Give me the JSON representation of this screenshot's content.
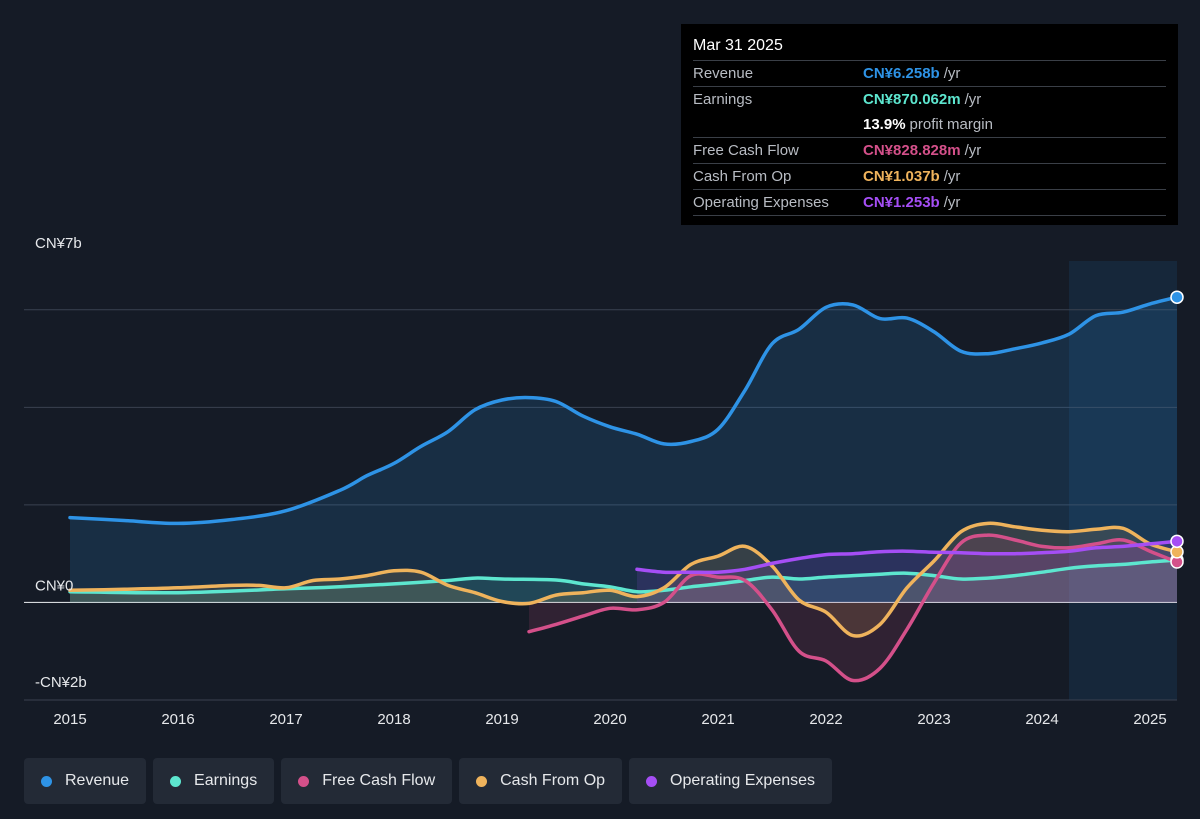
{
  "tooltip": {
    "date": "Mar 31 2025",
    "rows": [
      {
        "label": "Revenue",
        "value": "CN¥6.258b",
        "unit": "/yr",
        "color": "#2e93e6"
      },
      {
        "label": "Earnings",
        "value": "CN¥870.062m",
        "unit": "/yr",
        "color": "#5de6cf"
      },
      {
        "label": "",
        "value": "13.9%",
        "unit": "profit margin",
        "color": "#ffffff"
      },
      {
        "label": "Free Cash Flow",
        "value": "CN¥828.828m",
        "unit": "/yr",
        "color": "#d4508a"
      },
      {
        "label": "Cash From Op",
        "value": "CN¥1.037b",
        "unit": "/yr",
        "color": "#efb35c"
      },
      {
        "label": "Operating Expenses",
        "value": "CN¥1.253b",
        "unit": "/yr",
        "color": "#a54ef5"
      }
    ]
  },
  "legend": [
    {
      "label": "Revenue",
      "color": "#2e93e6"
    },
    {
      "label": "Earnings",
      "color": "#5de6cf"
    },
    {
      "label": "Free Cash Flow",
      "color": "#d4508a"
    },
    {
      "label": "Cash From Op",
      "color": "#efb35c"
    },
    {
      "label": "Operating Expenses",
      "color": "#a54ef5"
    }
  ],
  "chart_data": {
    "type": "area",
    "y_tick_labels": [
      "CN¥7b",
      "CN¥0",
      "-CN¥2b"
    ],
    "x_tick_labels": [
      "2015",
      "2016",
      "2017",
      "2018",
      "2019",
      "2020",
      "2021",
      "2022",
      "2023",
      "2024",
      "2025"
    ],
    "xlim": [
      2015.0,
      2025.25
    ],
    "ylim": [
      -2.0,
      7.0
    ],
    "y_unit": "CN¥ billions",
    "grid": true,
    "highlight_start": 2024.25,
    "series": [
      {
        "name": "Revenue",
        "color": "#2e93e6",
        "fill": true,
        "points": [
          [
            2015.0,
            1.74
          ],
          [
            2015.5,
            1.68
          ],
          [
            2016.0,
            1.62
          ],
          [
            2016.5,
            1.7
          ],
          [
            2017.0,
            1.88
          ],
          [
            2017.5,
            2.3
          ],
          [
            2017.75,
            2.6
          ],
          [
            2018.0,
            2.85
          ],
          [
            2018.25,
            3.2
          ],
          [
            2018.5,
            3.5
          ],
          [
            2018.75,
            3.95
          ],
          [
            2019.0,
            4.15
          ],
          [
            2019.25,
            4.2
          ],
          [
            2019.5,
            4.12
          ],
          [
            2019.75,
            3.82
          ],
          [
            2020.0,
            3.6
          ],
          [
            2020.25,
            3.45
          ],
          [
            2020.5,
            3.25
          ],
          [
            2020.75,
            3.3
          ],
          [
            2021.0,
            3.55
          ],
          [
            2021.25,
            4.35
          ],
          [
            2021.5,
            5.3
          ],
          [
            2021.75,
            5.6
          ],
          [
            2022.0,
            6.05
          ],
          [
            2022.25,
            6.1
          ],
          [
            2022.5,
            5.82
          ],
          [
            2022.75,
            5.83
          ],
          [
            2023.0,
            5.55
          ],
          [
            2023.25,
            5.15
          ],
          [
            2023.5,
            5.1
          ],
          [
            2023.75,
            5.2
          ],
          [
            2024.0,
            5.32
          ],
          [
            2024.25,
            5.5
          ],
          [
            2024.5,
            5.88
          ],
          [
            2024.75,
            5.95
          ],
          [
            2025.0,
            6.12
          ],
          [
            2025.25,
            6.258
          ]
        ]
      },
      {
        "name": "Earnings",
        "color": "#5de6cf",
        "fill": true,
        "points": [
          [
            2015.0,
            0.22
          ],
          [
            2016.0,
            0.2
          ],
          [
            2017.0,
            0.28
          ],
          [
            2017.5,
            0.32
          ],
          [
            2018.0,
            0.38
          ],
          [
            2018.5,
            0.45
          ],
          [
            2018.75,
            0.5
          ],
          [
            2019.0,
            0.48
          ],
          [
            2019.5,
            0.46
          ],
          [
            2019.75,
            0.38
          ],
          [
            2020.0,
            0.32
          ],
          [
            2020.25,
            0.22
          ],
          [
            2020.5,
            0.25
          ],
          [
            2020.75,
            0.32
          ],
          [
            2021.0,
            0.38
          ],
          [
            2021.25,
            0.45
          ],
          [
            2021.5,
            0.52
          ],
          [
            2021.75,
            0.48
          ],
          [
            2022.0,
            0.52
          ],
          [
            2022.25,
            0.55
          ],
          [
            2022.5,
            0.58
          ],
          [
            2022.75,
            0.6
          ],
          [
            2023.0,
            0.55
          ],
          [
            2023.25,
            0.48
          ],
          [
            2023.5,
            0.5
          ],
          [
            2023.75,
            0.55
          ],
          [
            2024.0,
            0.62
          ],
          [
            2024.25,
            0.7
          ],
          [
            2024.5,
            0.75
          ],
          [
            2024.75,
            0.78
          ],
          [
            2025.0,
            0.83
          ],
          [
            2025.25,
            0.87
          ]
        ]
      },
      {
        "name": "Free Cash Flow",
        "color": "#d4508a",
        "fill": true,
        "points": [
          [
            2019.25,
            -0.6
          ],
          [
            2019.5,
            -0.45
          ],
          [
            2019.75,
            -0.28
          ],
          [
            2020.0,
            -0.12
          ],
          [
            2020.25,
            -0.15
          ],
          [
            2020.5,
            0.0
          ],
          [
            2020.75,
            0.55
          ],
          [
            2021.0,
            0.52
          ],
          [
            2021.25,
            0.45
          ],
          [
            2021.5,
            -0.15
          ],
          [
            2021.75,
            -1.0
          ],
          [
            2022.0,
            -1.2
          ],
          [
            2022.25,
            -1.6
          ],
          [
            2022.5,
            -1.35
          ],
          [
            2022.75,
            -0.55
          ],
          [
            2023.0,
            0.4
          ],
          [
            2023.25,
            1.22
          ],
          [
            2023.5,
            1.38
          ],
          [
            2023.75,
            1.28
          ],
          [
            2024.0,
            1.15
          ],
          [
            2024.25,
            1.12
          ],
          [
            2024.5,
            1.2
          ],
          [
            2024.75,
            1.28
          ],
          [
            2025.0,
            1.05
          ],
          [
            2025.25,
            0.829
          ]
        ]
      },
      {
        "name": "Cash From Op",
        "color": "#efb35c",
        "fill": true,
        "points": [
          [
            2015.0,
            0.25
          ],
          [
            2015.5,
            0.27
          ],
          [
            2016.0,
            0.3
          ],
          [
            2016.5,
            0.35
          ],
          [
            2016.75,
            0.35
          ],
          [
            2017.0,
            0.3
          ],
          [
            2017.25,
            0.45
          ],
          [
            2017.5,
            0.48
          ],
          [
            2017.75,
            0.55
          ],
          [
            2018.0,
            0.65
          ],
          [
            2018.25,
            0.62
          ],
          [
            2018.5,
            0.35
          ],
          [
            2018.75,
            0.2
          ],
          [
            2019.0,
            0.02
          ],
          [
            2019.25,
            -0.02
          ],
          [
            2019.5,
            0.15
          ],
          [
            2019.75,
            0.2
          ],
          [
            2020.0,
            0.25
          ],
          [
            2020.25,
            0.12
          ],
          [
            2020.5,
            0.3
          ],
          [
            2020.75,
            0.78
          ],
          [
            2021.0,
            0.95
          ],
          [
            2021.25,
            1.15
          ],
          [
            2021.5,
            0.75
          ],
          [
            2021.75,
            0.05
          ],
          [
            2022.0,
            -0.2
          ],
          [
            2022.25,
            -0.68
          ],
          [
            2022.5,
            -0.45
          ],
          [
            2022.75,
            0.3
          ],
          [
            2023.0,
            0.85
          ],
          [
            2023.25,
            1.45
          ],
          [
            2023.5,
            1.62
          ],
          [
            2023.75,
            1.55
          ],
          [
            2024.0,
            1.48
          ],
          [
            2024.25,
            1.45
          ],
          [
            2024.5,
            1.5
          ],
          [
            2024.75,
            1.52
          ],
          [
            2025.0,
            1.2
          ],
          [
            2025.25,
            1.037
          ]
        ]
      },
      {
        "name": "Operating Expenses",
        "color": "#a54ef5",
        "fill": true,
        "points": [
          [
            2020.25,
            0.68
          ],
          [
            2020.5,
            0.62
          ],
          [
            2020.75,
            0.62
          ],
          [
            2021.0,
            0.62
          ],
          [
            2021.25,
            0.68
          ],
          [
            2021.5,
            0.8
          ],
          [
            2021.75,
            0.9
          ],
          [
            2022.0,
            0.98
          ],
          [
            2022.25,
            1.0
          ],
          [
            2022.5,
            1.04
          ],
          [
            2022.75,
            1.05
          ],
          [
            2023.0,
            1.03
          ],
          [
            2023.25,
            1.02
          ],
          [
            2023.5,
            1.0
          ],
          [
            2023.75,
            1.0
          ],
          [
            2024.0,
            1.02
          ],
          [
            2024.25,
            1.05
          ],
          [
            2024.5,
            1.12
          ],
          [
            2024.75,
            1.15
          ],
          [
            2025.0,
            1.2
          ],
          [
            2025.25,
            1.253
          ]
        ]
      }
    ]
  }
}
